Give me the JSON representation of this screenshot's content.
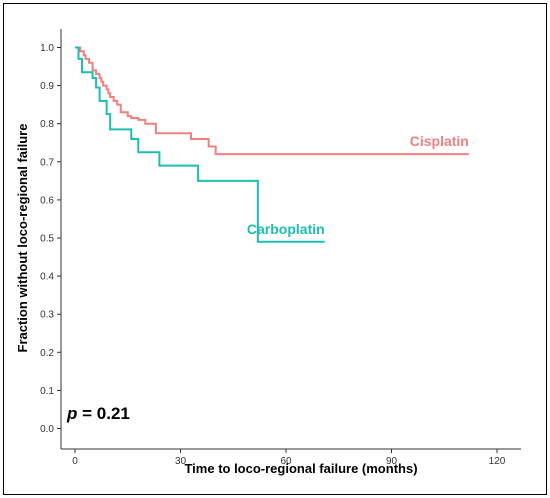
{
  "chart_data": {
    "type": "line",
    "step": true,
    "title": "",
    "xlabel": "Time to loco-regional failure (months)",
    "ylabel": "Fraction without loco-regional failure",
    "xlim": [
      -3,
      120
    ],
    "ylim": [
      0,
      1.0
    ],
    "xticks": [
      0,
      30,
      60,
      90,
      120
    ],
    "yticks": [
      0.0,
      0.1,
      0.2,
      0.3,
      0.4,
      0.5,
      0.6,
      0.7,
      0.8,
      0.9,
      1.0
    ],
    "grid": false,
    "legend": "inline labels",
    "annotation": {
      "italic": "p",
      "text": " = 0.21"
    },
    "series": [
      {
        "name": "Cisplatin",
        "color": "#F07F7F",
        "x": [
          0,
          1.5,
          2.5,
          3,
          4,
          5,
          6,
          7,
          7.5,
          8,
          9,
          9.5,
          10,
          11,
          12,
          13,
          15,
          16,
          18,
          20,
          23,
          30,
          33,
          37,
          38,
          40,
          112
        ],
        "y": [
          1.0,
          0.99,
          0.98,
          0.97,
          0.96,
          0.94,
          0.93,
          0.92,
          0.91,
          0.9,
          0.89,
          0.88,
          0.87,
          0.86,
          0.85,
          0.83,
          0.82,
          0.815,
          0.81,
          0.8,
          0.775,
          0.775,
          0.76,
          0.76,
          0.74,
          0.72,
          0.72
        ]
      },
      {
        "name": "Carboplatin",
        "color": "#1CBEB3",
        "x": [
          0,
          1,
          2,
          5,
          6,
          7,
          9,
          10,
          16,
          18,
          24,
          34,
          35,
          52,
          71
        ],
        "y": [
          1.0,
          0.97,
          0.935,
          0.92,
          0.895,
          0.86,
          0.825,
          0.785,
          0.76,
          0.725,
          0.69,
          0.69,
          0.65,
          0.49,
          0.49
        ]
      }
    ]
  }
}
